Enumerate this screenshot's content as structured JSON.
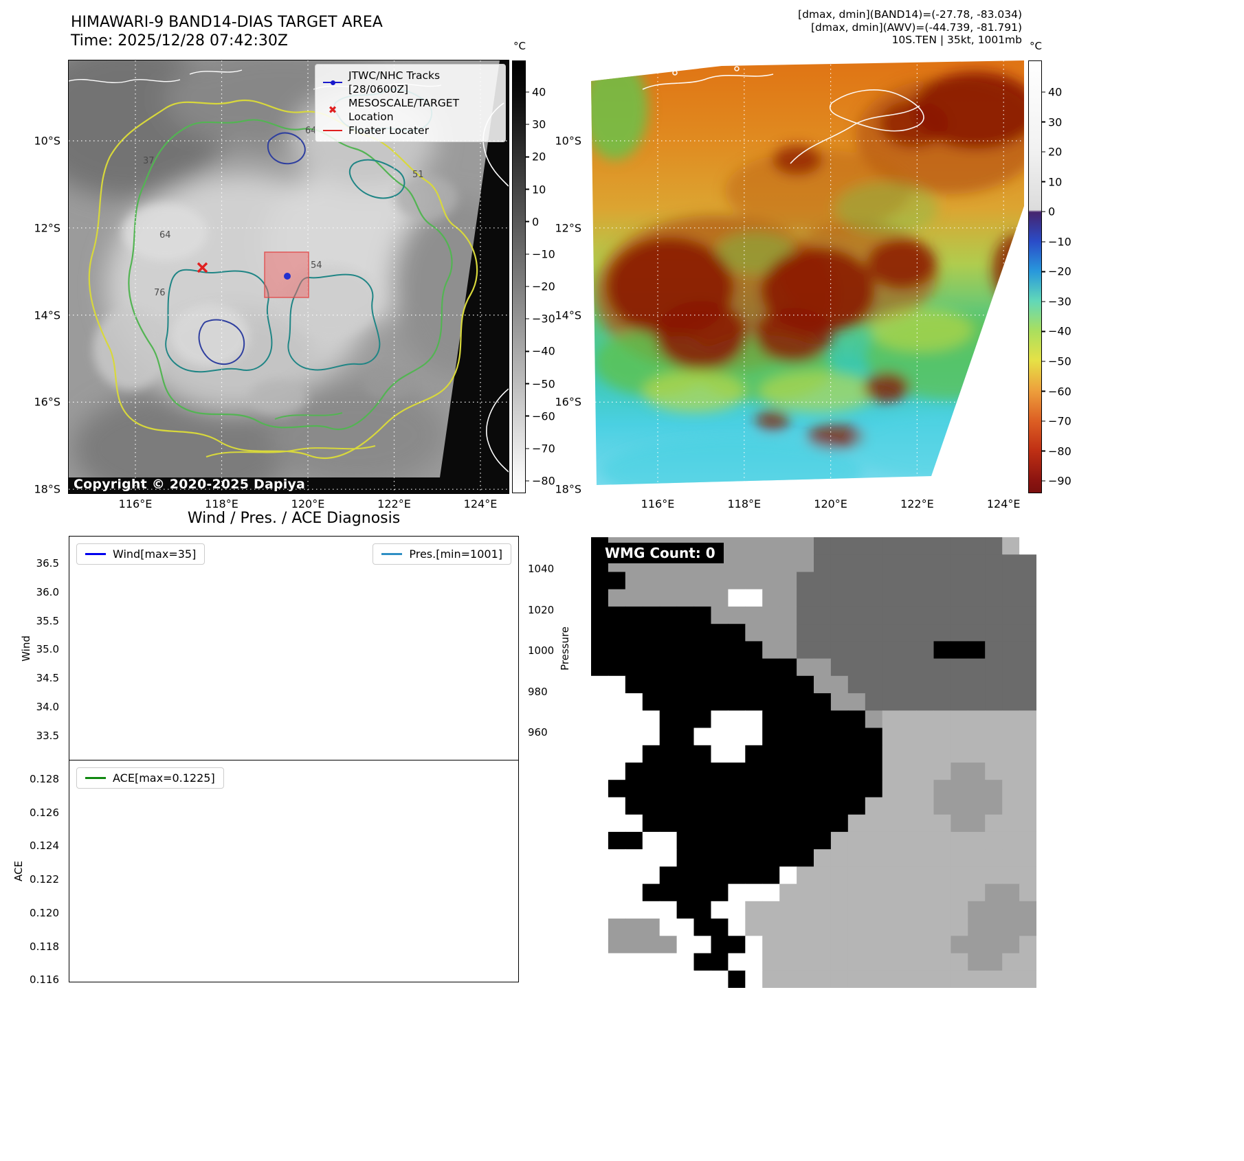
{
  "band14": {
    "title": "HIMAWARI-9 BAND14-DIAS TARGET AREA",
    "time": "Time: 2025/12/28 07:42:30Z",
    "copyright": "Copyright © 2020-2025 Dapiya",
    "legend": {
      "tracks": "JTWC/NHC Tracks [28/0600Z]",
      "target": "MESOSCALE/TARGET Location",
      "floater": "Floater Locater"
    },
    "colorbar_unit": "°C",
    "colorbar_ticks": [
      "40",
      "30",
      "20",
      "10",
      "0",
      "−10",
      "−20",
      "−30",
      "−40",
      "−50",
      "−60",
      "−70",
      "−80"
    ],
    "lat_ticks": [
      "10°S",
      "12°S",
      "14°S",
      "16°S",
      "18°S"
    ],
    "lon_ticks": [
      "116°E",
      "118°E",
      "120°E",
      "122°E",
      "124°E"
    ],
    "contour_labels": [
      "37",
      "64",
      "51",
      "64",
      "76",
      "54"
    ]
  },
  "awv": {
    "header_lines": [
      "[dmax, dmin](BAND14)=(-27.78, -83.034)",
      "[dmax, dmin](AWV)=(-44.739, -81.791)",
      "10S.TEN | 35kt, 1001mb"
    ],
    "colorbar_unit": "°C",
    "colorbar_ticks": [
      "40",
      "30",
      "20",
      "10",
      "0",
      "−10",
      "−20",
      "−30",
      "−40",
      "−50",
      "−60",
      "−70",
      "−80",
      "−90"
    ],
    "lat_ticks": [
      "10°S",
      "12°S",
      "14°S",
      "16°S",
      "18°S"
    ],
    "lon_ticks": [
      "116°E",
      "118°E",
      "120°E",
      "122°E",
      "124°E"
    ]
  },
  "diagnosis": {
    "title": "Wind / Pres. / ACE Diagnosis",
    "wind_legend": "Wind[max=35]",
    "pres_legend": "Pres.[min=1001]",
    "ace_legend": "ACE[max=0.1225]",
    "wind_label": "Wind",
    "pressure_label": "Pressure",
    "ace_label": "ACE",
    "wind_ticks": [
      "36.5",
      "36.0",
      "35.5",
      "35.0",
      "34.5",
      "34.0",
      "33.5"
    ],
    "pressure_ticks": [
      "1040",
      "1020",
      "1000",
      "980",
      "960"
    ],
    "ace_ticks": [
      "0.128",
      "0.126",
      "0.124",
      "0.122",
      "0.120",
      "0.118",
      "0.116"
    ]
  },
  "wmg": {
    "label": "WMG Count: 0",
    "palette": {
      "K": "#000000",
      "W": "#ffffff",
      "M": "#9c9c9c",
      "D": "#6b6b6b",
      "L": "#b5b5b5"
    },
    "grid": [
      "KMMMMMMMMMMMMDDDDDDDDDDDLW",
      "KMMMMMMMMMMMMDDDDDDDDDDDDD",
      "KKMMMMMMMMMMDDDDDDDDDDDDDD",
      "KMMMMMMMWWMMDDDDDDDDDDDDDD",
      "KKKKKKKMMMMMDDDDDDDDDDDDDD",
      "KKKKKKKKKMMMDDDDDDDDDDDDDD",
      "KKKKKKKKKKMMDDDDDDDDKKKDDD",
      "KKKKKKKKKKKKMMDDDDDDDDDDDD",
      "WWKKKKKKKKKKKMMDDDDDDDDDDD",
      "WWWKKKKKKKKKKKMMDDDDDDDDDD",
      "WWWWKKKWWWKKKKKKMLLLLLLLLL",
      "WWWWKKWWWWKKKKKKKLLLLLLLLL",
      "WWWKKKKWWKKKKKKKKLLLLLLLLL",
      "WWKKKKKKKKKKKKKKKLLLLMMLLL",
      "WKKKKKKKKKKKKKKKKLLLMMMMLL",
      "WWKKKKKKKKKKKKKKLLLLMMMMLL",
      "WWWKKKKKKKKKKKKLLLLLLMMLLL",
      "WKKWWKKKKKKKKKLLLLLLLLLLLL",
      "WWWWWKKKKKKKKLLLLLLLLLLLLL",
      "WWWWKKKKKKKWLLLLLLLLLLLLLL",
      "WWWKKKKKWWWLLLLLLLLLLLLMML",
      "WWWWWKKWWLLLLLLLLLLLLLMMMM",
      "WMMMWWKKWLLLLLLLLLLLLLMMMM",
      "WMMMMWWKKWLLLLLLLLLLLMMMML",
      "WWWWWWKKWWLLLLLLLLLLLLMMLL",
      "WWWWWWWWKWLLLLLLLLLLLLLLLL"
    ]
  },
  "colors": {
    "wind_line": "#0000ee",
    "pres_line": "#2f8fc4",
    "ace_line": "#118811",
    "track_blue": "#1919cc",
    "target_red": "#e02020"
  },
  "chart_data": [
    {
      "type": "line",
      "title": "Wind / Pres. / ACE Diagnosis",
      "subplot": "wind_pressure",
      "x": [],
      "series": [
        {
          "name": "Wind[max=35]",
          "axis": "left",
          "ylabel": "Wind",
          "color": "#0000ee",
          "max": 35,
          "values": []
        },
        {
          "name": "Pres.[min=1001]",
          "axis": "right",
          "ylabel": "Pressure",
          "color": "#2f8fc4",
          "min": 1001,
          "values": []
        }
      ],
      "ylim_left": [
        33.25,
        36.75
      ],
      "ylim_right": [
        945,
        1055
      ],
      "yticks_left": [
        36.5,
        36.0,
        35.5,
        35.0,
        34.5,
        34.0,
        33.5
      ],
      "yticks_right": [
        1040,
        1020,
        1000,
        980,
        960
      ],
      "grid": false,
      "legend_position": [
        "upper left",
        "upper right"
      ],
      "note": "Plot area is empty; only legend max/min values are shown in the figure"
    },
    {
      "type": "line",
      "subplot": "ace",
      "x": [],
      "series": [
        {
          "name": "ACE[max=0.1225]",
          "ylabel": "ACE",
          "color": "#118811",
          "max": 0.1225,
          "values": []
        }
      ],
      "yticks": [
        0.128,
        0.126,
        0.124,
        0.122,
        0.12,
        0.118,
        0.116
      ],
      "grid": false,
      "legend_position": [
        "upper left"
      ]
    }
  ]
}
